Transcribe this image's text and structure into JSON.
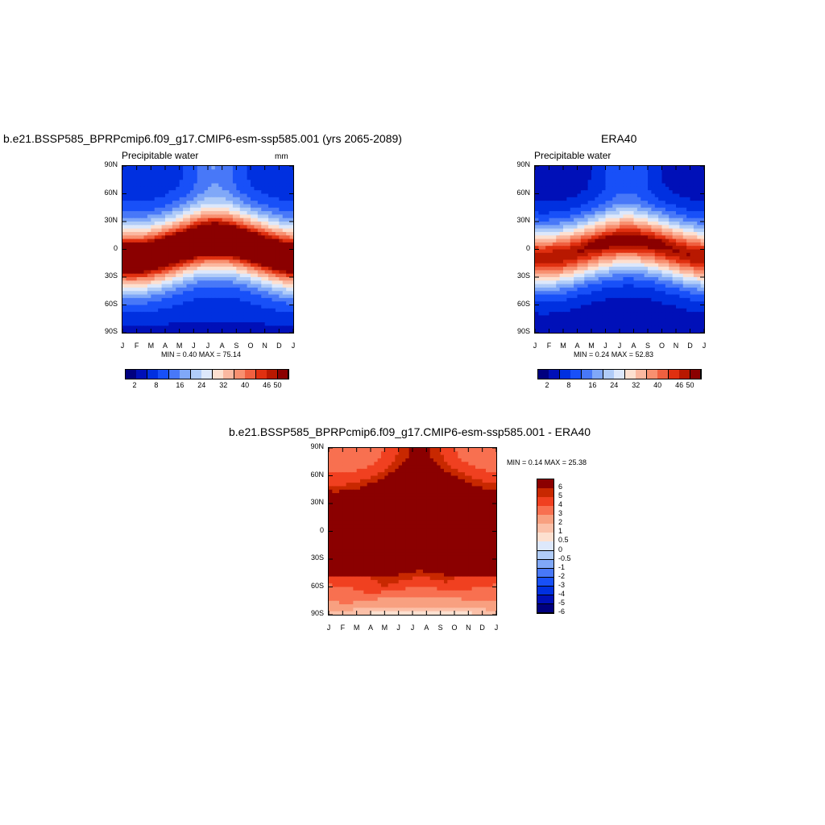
{
  "chart_data": [
    {
      "type": "heatmap",
      "title": "b.e21.BSSP585_BPRPcmip6.f09_g17.CMIP6-esm-ssp585.001 (yrs 2065-2089)",
      "subtitle": "Precipitable water",
      "units": "mm",
      "x_ticks": [
        "J",
        "F",
        "M",
        "A",
        "M",
        "J",
        "J",
        "A",
        "S",
        "O",
        "N",
        "D",
        "J"
      ],
      "y_ticks": [
        "90N",
        "60N",
        "30N",
        "0",
        "30S",
        "60S",
        "90S"
      ],
      "stats": "MIN =   0.40 MAX =  75.14",
      "min": 0.4,
      "max": 75.14,
      "colorbar_labels": [
        "2",
        "8",
        "16",
        "24",
        "32",
        "40",
        "46",
        "50"
      ],
      "colorbar_levels": [
        2,
        5,
        8,
        12,
        16,
        20,
        24,
        28,
        32,
        36,
        40,
        43,
        46,
        48,
        50
      ]
    },
    {
      "type": "heatmap",
      "title": "ERA40",
      "subtitle": "Precipitable water",
      "units": "",
      "x_ticks": [
        "J",
        "F",
        "M",
        "A",
        "M",
        "J",
        "J",
        "A",
        "S",
        "O",
        "N",
        "D",
        "J"
      ],
      "y_ticks": [
        "90N",
        "60N",
        "30N",
        "0",
        "30S",
        "60S",
        "90S"
      ],
      "stats": "MIN =   0.24 MAX =  52.83",
      "min": 0.24,
      "max": 52.83,
      "colorbar_labels": [
        "2",
        "8",
        "16",
        "24",
        "32",
        "40",
        "46",
        "50"
      ],
      "colorbar_levels": [
        2,
        5,
        8,
        12,
        16,
        20,
        24,
        28,
        32,
        36,
        40,
        43,
        46,
        48,
        50
      ]
    },
    {
      "type": "heatmap",
      "title": "b.e21.BSSP585_BPRPcmip6.f09_g17.CMIP6-esm-ssp585.001 - ERA40",
      "subtitle": "",
      "units": "",
      "x_ticks": [
        "J",
        "F",
        "M",
        "A",
        "M",
        "J",
        "J",
        "A",
        "S",
        "O",
        "N",
        "D",
        "J"
      ],
      "y_ticks": [
        "90N",
        "60N",
        "30N",
        "0",
        "30S",
        "60S",
        "90S"
      ],
      "stats": "MIN =   0.14 MAX =  25.38",
      "min": 0.14,
      "max": 25.38,
      "colorbar_labels": [
        "6",
        "5",
        "4",
        "3",
        "2",
        "1",
        "0.5",
        "0",
        "-0.5",
        "-1",
        "-2",
        "-3",
        "-4",
        "-5",
        "-6"
      ],
      "colorbar_levels": [
        -6,
        -5,
        -4,
        -3,
        -2,
        -1,
        -0.5,
        0,
        0.5,
        1,
        2,
        3,
        4,
        5,
        6
      ]
    }
  ],
  "colors": {
    "abs_scale": [
      "#00007f",
      "#0010b8",
      "#0030e0",
      "#1850f8",
      "#4878f8",
      "#80a8f8",
      "#b0ccf8",
      "#dde8fb",
      "#fde0d0",
      "#fbb8a0",
      "#f89070",
      "#f06040",
      "#e03010",
      "#b81800",
      "#8b0000"
    ],
    "diff_scale": [
      "#00007f",
      "#0010b8",
      "#0030e0",
      "#1850f8",
      "#4878f8",
      "#80a8f8",
      "#b0ccf8",
      "#dde8fb",
      "#fde0d0",
      "#fbc0a8",
      "#f8a080",
      "#f87050",
      "#f04020",
      "#c82800",
      "#8b0000"
    ]
  }
}
